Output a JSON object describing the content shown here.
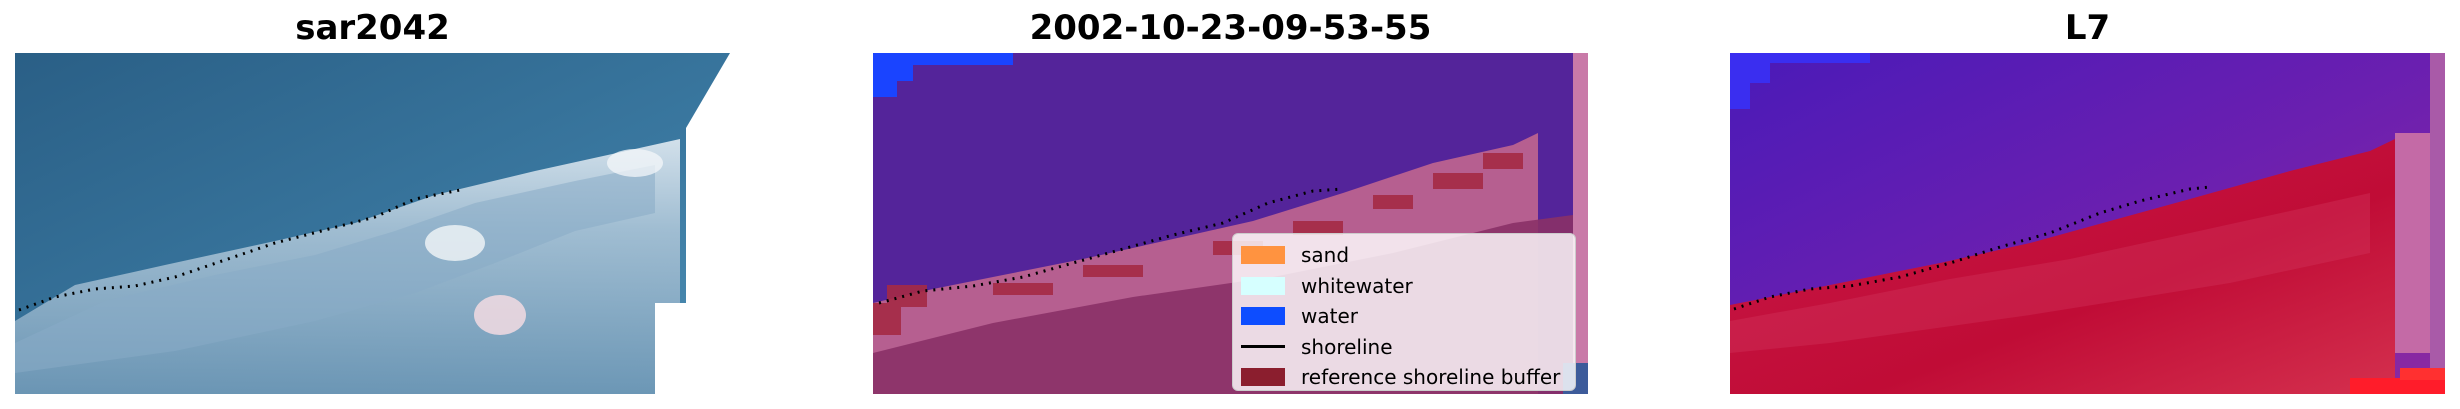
{
  "panels": [
    {
      "title": "sar2042"
    },
    {
      "title": "2002-10-23-09-53-55"
    },
    {
      "title": "L7"
    }
  ],
  "legend": {
    "items": [
      {
        "label": "sand",
        "color": "#ff9340",
        "kind": "patch"
      },
      {
        "label": "whitewater",
        "color": "#d6ffff",
        "kind": "patch"
      },
      {
        "label": "water",
        "color": "#0d4dff",
        "kind": "patch"
      },
      {
        "label": "shoreline",
        "color": "#000000",
        "kind": "line"
      },
      {
        "label": "reference shoreline buffer",
        "color": "#8b1e2e",
        "kind": "patch"
      }
    ]
  },
  "colors": {
    "water_class": "#54249a",
    "sea_rgb": "#2e6a8f",
    "ndwi_water": "#5a1aa8",
    "ndwi_land": "#c4103a"
  }
}
